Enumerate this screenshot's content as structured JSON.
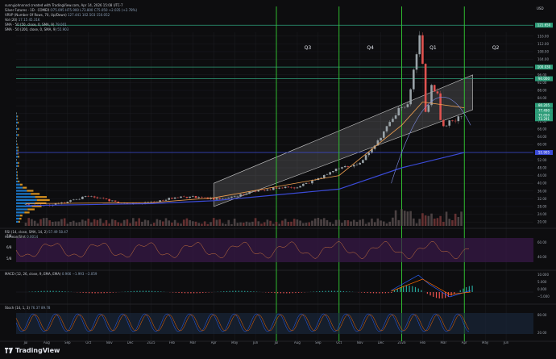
{
  "app": {
    "brand": "TradingView",
    "caption": "sunnyjohnnnnd created with TradingView.com, Apr 14, 2026 15:08 UTC-7",
    "currency": "USD"
  },
  "legend_rows": [
    {
      "label": "Silver Futures · 1D · COMEX",
      "values": "O75.095 H75.900 L73.800 C75.050 +2.035 (+2.78%)"
    },
    {
      "label": "VRVP (Number Of Rows, 70, Up/Down)",
      "values": "127.441  102.503  150.052"
    },
    {
      "label": "Vol (20)",
      "values": "17.15  45.31K"
    },
    {
      "label": "SMA · 50 (50, close, 0, SMA, 9)",
      "values": "79.001"
    },
    {
      "label": "SMA · 50 (200, close, 0, SMA, 9)",
      "values": "55.903"
    }
  ],
  "quarter_labels": [
    "Q3",
    "Q4",
    "Q1",
    "Q2"
  ],
  "indicators": {
    "rsi": {
      "label": "RSI (14, close, SMA, 14, 2)",
      "values": "57.49  58.47",
      "extra_label": "Acmean/Shrt",
      "extra_value": "0.0014",
      "left_ticks": [
        "7/8",
        "6/8",
        "5/8"
      ],
      "right_ticks": [
        "60.00",
        "40.00"
      ]
    },
    "macd": {
      "label": "MACD (12, 26, close, 9, EMA, EMA)",
      "values": "0.966  −1.993  −2.059",
      "right_ticks": [
        "10.000",
        "5.000",
        "0.000",
        "−5.000"
      ]
    },
    "stoch": {
      "label": "Stoch (14, 1, 3)",
      "values": "76.37  89.78",
      "right_ticks": [
        "80.00",
        "20.00"
      ]
    }
  },
  "colors": {
    "background": "#0d0d0f",
    "grid": "#1c1d22",
    "up_candle": "#9aa3a8",
    "down_candle": "#e0524f",
    "sma_fast": "#f0a050",
    "sma_slow": "#3b4bd8",
    "channel": "#c8c8c8",
    "quarter_line": "#33cc33",
    "level_line": "#2e9e7a",
    "rsi_fill": "#3a1a4a",
    "volume_up": "#1e88e5",
    "volume_down": "#f5a623"
  },
  "chart_data": {
    "type": "candlestick",
    "title": "Silver Futures · 1D · COMEX",
    "x_ticks": [
      "Jul",
      "Aug",
      "Sep",
      "Oct",
      "Nov",
      "Dec",
      "2025",
      "Feb",
      "Mar",
      "Apr",
      "May",
      "Jun",
      "Jul",
      "Aug",
      "Sep",
      "Oct",
      "Nov",
      "Dec",
      "2026",
      "Feb",
      "Mar",
      "Apr",
      "May",
      "Jun"
    ],
    "y_ticks": [
      20,
      24,
      28,
      32,
      36,
      40,
      44,
      48,
      52,
      56,
      60,
      64,
      68,
      72,
      76,
      80,
      84,
      88,
      92,
      96,
      100,
      104,
      108,
      112,
      116
    ],
    "y_range": [
      18,
      118
    ],
    "price_labels": [
      {
        "value": 121.65,
        "color": "#2e9e7a"
      },
      {
        "value": 100.03,
        "color": "#2e9e7a"
      },
      {
        "value": 94.0,
        "color": "#2e9e7a"
      },
      {
        "value": 80.205,
        "color": "#2e9e7a"
      },
      {
        "value": 77.49,
        "color": "#2e9e7a"
      },
      {
        "value": 75.05,
        "color": "#2e9e7a"
      },
      {
        "value": 73.291,
        "color": "#2e9e7a"
      },
      {
        "value": 55.905,
        "color": "#3b4bd8"
      }
    ],
    "close_path": [
      [
        "Jul",
        29.0
      ],
      [
        "Aug",
        28.5
      ],
      [
        "Sep",
        30.5
      ],
      [
        "Oct",
        33.5
      ],
      [
        "Nov",
        31.0
      ],
      [
        "Dec",
        29.5
      ],
      [
        "2025",
        30.0
      ],
      [
        "Feb",
        32.5
      ],
      [
        "Mar",
        33.0
      ],
      [
        "Apr",
        32.0
      ],
      [
        "May",
        33.0
      ],
      [
        "Jun",
        36.0
      ],
      [
        "Jul",
        37.5
      ],
      [
        "Aug",
        38.0
      ],
      [
        "Sep",
        42.5
      ],
      [
        "Oct",
        48.0
      ],
      [
        "Nov",
        50.0
      ],
      [
        "Dec",
        64.0
      ],
      [
        "2026",
        80.0
      ],
      [
        "Feb",
        84.0
      ],
      [
        "Mar",
        70.0
      ],
      [
        "Apr",
        75.05
      ]
    ],
    "key_points": [
      {
        "date": "late Jan 2026",
        "high": 121.6
      },
      {
        "date": "early Feb 2026",
        "low": 64.0
      },
      {
        "date": "mid Feb 2026",
        "high": 96.0
      }
    ],
    "sma_50": [
      [
        "Jul",
        29.5
      ],
      [
        "2025",
        30.0
      ],
      [
        "Apr",
        32.5
      ],
      [
        "Oct",
        44.0
      ],
      [
        "2026",
        70.0
      ],
      [
        "Feb",
        82.0
      ],
      [
        "Apr",
        79.0
      ]
    ],
    "sma_200": [
      [
        "Jul",
        28.5
      ],
      [
        "2025",
        29.5
      ],
      [
        "Apr",
        31.0
      ],
      [
        "Oct",
        37.0
      ],
      [
        "2026",
        48.0
      ],
      [
        "Apr",
        55.9
      ]
    ],
    "channel": {
      "upper_start": [
        "Apr 2025",
        40.0
      ],
      "upper_end": [
        "Apr 2026",
        96.0
      ],
      "lower_start": [
        "Apr 2025",
        28.0
      ],
      "lower_end": [
        "Apr 2026",
        78.0
      ]
    },
    "horizontal_levels": [
      121.65,
      100.03,
      94.0,
      55.905
    ],
    "quarter_boundaries": [
      "Jul 2025",
      "Oct 2025",
      "Jan 2026",
      "Apr 2026"
    ]
  }
}
